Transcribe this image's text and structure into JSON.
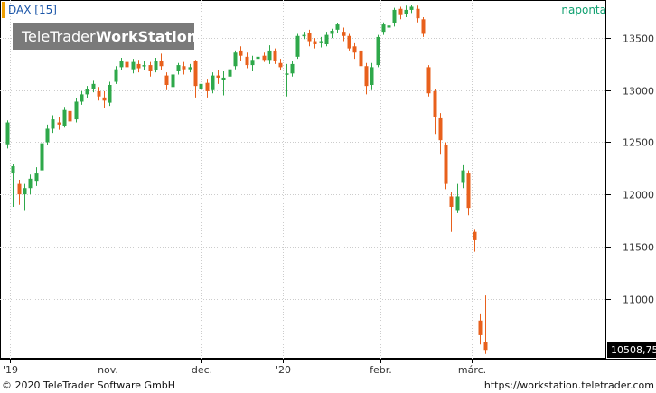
{
  "header": {
    "instrument": "DAX [15]",
    "period": "naponta",
    "logo_regular": "TeleTrader",
    "logo_bold": "WorkStation"
  },
  "footer": {
    "copyright": "© 2020 TeleTrader Software GmbH",
    "url": "https://workstation.teletrader.com"
  },
  "colors": {
    "up": "#2ea84a",
    "down": "#e8601c",
    "grid": "#cccccc",
    "accent": "#f0a000",
    "last_bg": "#000000"
  },
  "chart_data": {
    "type": "candlestick",
    "ylim": [
      10450,
      13830
    ],
    "y_ticks": [
      "13500",
      "13000",
      "12500",
      "12000",
      "11500",
      "11000"
    ],
    "x_labels": [
      "'19",
      "nov.",
      "dec.",
      "'20",
      "febr.",
      "márc."
    ],
    "last_value": "10508,75",
    "candles": [
      [
        12480,
        12690,
        12440,
        12710
      ],
      [
        12200,
        12270,
        11880,
        12290
      ],
      [
        12100,
        12000,
        11900,
        12140
      ],
      [
        12000,
        12060,
        11850,
        12100
      ],
      [
        12060,
        12150,
        12000,
        12190
      ],
      [
        12130,
        12200,
        12080,
        12260
      ],
      [
        12230,
        12490,
        12210,
        12510
      ],
      [
        12500,
        12630,
        12470,
        12670
      ],
      [
        12630,
        12720,
        12590,
        12760
      ],
      [
        12690,
        12670,
        12620,
        12740
      ],
      [
        12660,
        12810,
        12640,
        12840
      ],
      [
        12800,
        12700,
        12640,
        12830
      ],
      [
        12720,
        12890,
        12690,
        12920
      ],
      [
        12890,
        12960,
        12860,
        12990
      ],
      [
        12960,
        13010,
        12920,
        13040
      ],
      [
        13010,
        13060,
        12980,
        13090
      ],
      [
        12990,
        12940,
        12900,
        13030
      ],
      [
        12930,
        12900,
        12830,
        12990
      ],
      [
        12880,
        13050,
        12850,
        13080
      ],
      [
        13080,
        13200,
        13060,
        13230
      ],
      [
        13220,
        13280,
        13190,
        13310
      ],
      [
        13270,
        13220,
        13180,
        13300
      ],
      [
        13200,
        13270,
        13160,
        13300
      ],
      [
        13250,
        13210,
        13170,
        13290
      ],
      [
        13230,
        13240,
        13190,
        13280
      ],
      [
        13240,
        13180,
        13130,
        13270
      ],
      [
        13190,
        13280,
        13170,
        13310
      ],
      [
        13280,
        13230,
        13190,
        13350
      ],
      [
        13140,
        13050,
        13000,
        13170
      ],
      [
        13030,
        13150,
        13000,
        13180
      ],
      [
        13180,
        13240,
        13150,
        13260
      ],
      [
        13230,
        13200,
        13150,
        13270
      ],
      [
        13200,
        13220,
        13170,
        13250
      ],
      [
        13280,
        13040,
        12930,
        13290
      ],
      [
        13010,
        13060,
        12960,
        13110
      ],
      [
        13070,
        12990,
        12930,
        13110
      ],
      [
        13000,
        13140,
        12970,
        13170
      ],
      [
        13140,
        13120,
        13060,
        13190
      ],
      [
        13100,
        13120,
        12950,
        13180
      ],
      [
        13130,
        13200,
        13090,
        13230
      ],
      [
        13230,
        13360,
        13200,
        13380
      ],
      [
        13380,
        13330,
        13280,
        13420
      ],
      [
        13320,
        13240,
        13210,
        13360
      ],
      [
        13240,
        13290,
        13180,
        13330
      ],
      [
        13300,
        13320,
        13260,
        13350
      ],
      [
        13330,
        13290,
        13270,
        13360
      ],
      [
        13290,
        13380,
        13250,
        13430
      ],
      [
        13380,
        13280,
        13250,
        13400
      ],
      [
        13260,
        13220,
        13190,
        13300
      ],
      [
        13150,
        13160,
        12940,
        13250
      ],
      [
        13160,
        13250,
        13130,
        13280
      ],
      [
        13320,
        13520,
        13300,
        13540
      ],
      [
        13520,
        13530,
        13490,
        13560
      ],
      [
        13550,
        13470,
        13420,
        13580
      ],
      [
        13470,
        13440,
        13400,
        13500
      ],
      [
        13450,
        13470,
        13410,
        13510
      ],
      [
        13440,
        13530,
        13420,
        13560
      ],
      [
        13540,
        13570,
        13500,
        13590
      ],
      [
        13580,
        13630,
        13550,
        13640
      ],
      [
        13560,
        13520,
        13470,
        13600
      ],
      [
        13520,
        13400,
        13380,
        13540
      ],
      [
        13420,
        13360,
        13300,
        13450
      ],
      [
        13380,
        13230,
        13190,
        13400
      ],
      [
        13230,
        13040,
        12960,
        13260
      ],
      [
        13050,
        13220,
        13000,
        13260
      ],
      [
        13240,
        13510,
        13220,
        13530
      ],
      [
        13560,
        13630,
        13530,
        13650
      ],
      [
        13600,
        13620,
        13560,
        13680
      ],
      [
        13640,
        13770,
        13610,
        13790
      ],
      [
        13780,
        13720,
        13680,
        13800
      ],
      [
        13730,
        13770,
        13700,
        13810
      ],
      [
        13770,
        13800,
        13740,
        13820
      ],
      [
        13780,
        13690,
        13650,
        13810
      ],
      [
        13680,
        13540,
        13510,
        13700
      ],
      [
        13220,
        12970,
        12940,
        13240
      ],
      [
        12990,
        12740,
        12580,
        13010
      ],
      [
        12730,
        12520,
        12380,
        12780
      ],
      [
        12470,
        12100,
        12050,
        12500
      ],
      [
        11980,
        11880,
        11640,
        12020
      ],
      [
        11850,
        11980,
        11820,
        12100
      ],
      [
        12110,
        12230,
        12060,
        12280
      ],
      [
        12200,
        11870,
        11800,
        12230
      ],
      [
        11640,
        11560,
        11450,
        11660
      ],
      [
        10790,
        10650,
        10560,
        10850
      ],
      [
        10580,
        10508.75,
        10470,
        11030
      ]
    ]
  }
}
